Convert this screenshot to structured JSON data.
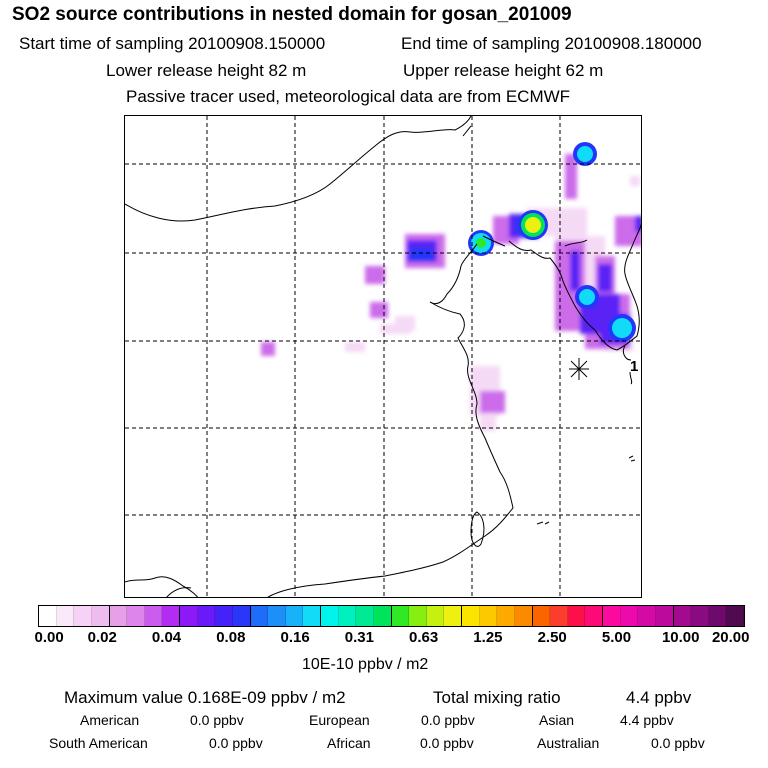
{
  "header": {
    "title": "SO2 source contributions in nested domain for gosan_201009",
    "start_label": "Start time of sampling 20100908.150000",
    "end_label": "End time of sampling 20100908.180000",
    "lower_label": "Lower release height   82 m",
    "upper_label": "Upper release height   62 m",
    "tracer_label": "Passive tracer used, meteorological data are from ECMWF"
  },
  "map": {
    "station_number": "1"
  },
  "colorbar": {
    "colors": [
      "#ffffff",
      "#fbe8fb",
      "#f6d2f6",
      "#efbcef",
      "#e79fe7",
      "#dd85ea",
      "#cc5cef",
      "#b22cf4",
      "#8c1af8",
      "#6a1af8",
      "#4422f8",
      "#2a36f8",
      "#1e6cf8",
      "#1c8ff8",
      "#18b2f8",
      "#10dcf8",
      "#00f4ec",
      "#00f0c0",
      "#00ea96",
      "#00e45c",
      "#30e826",
      "#86ee10",
      "#c6f010",
      "#eef010",
      "#fce400",
      "#fcc800",
      "#fcaa00",
      "#fc8a00",
      "#fc6400",
      "#fc3c2c",
      "#fc104a",
      "#fc0a78",
      "#fc0aa0",
      "#ec0aac",
      "#d40aa4",
      "#bc0a9c",
      "#a20a90",
      "#8a0a82",
      "#6e0a6e",
      "#500a50"
    ],
    "ticks": [
      "0.00",
      "0.02",
      "0.04",
      "0.08",
      "0.16",
      "0.31",
      "0.63",
      "1.25",
      "2.50",
      "5.00",
      "10.00",
      "20.00"
    ],
    "unit": "10E-10 ppbv / m2"
  },
  "summary": {
    "max_label": "Maximum value  0.168E-09 ppbv / m2",
    "total_label": "Total mixing ratio",
    "total_value": "4.4 ppbv",
    "regions": [
      {
        "name": "American",
        "value": "0.0 ppbv"
      },
      {
        "name": "European",
        "value": "0.0 ppbv"
      },
      {
        "name": "Asian",
        "value": "4.4 ppbv"
      },
      {
        "name": "South American",
        "value": "0.0 ppbv"
      },
      {
        "name": "African",
        "value": "0.0 ppbv"
      },
      {
        "name": "Australian",
        "value": "0.0 ppbv"
      }
    ]
  }
}
